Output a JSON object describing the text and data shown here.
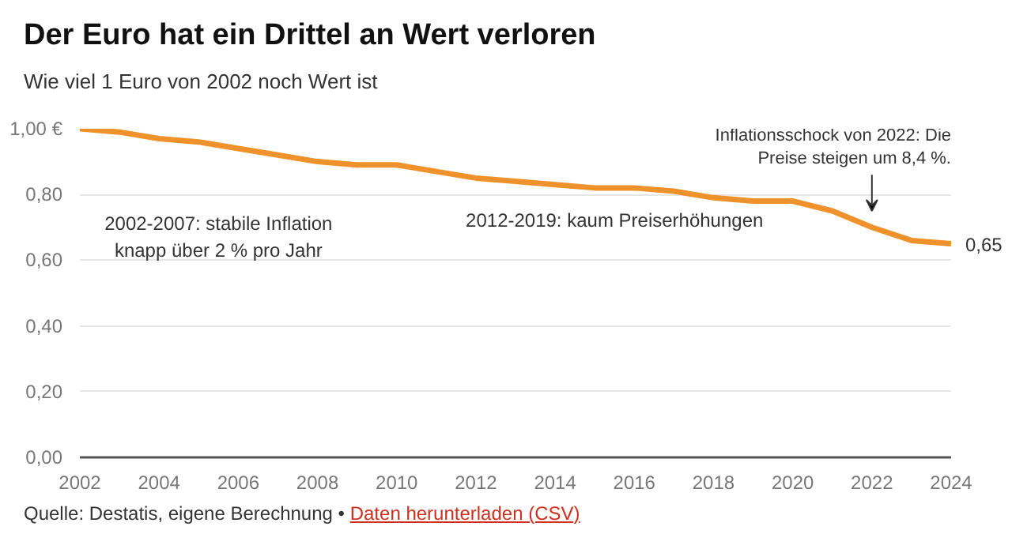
{
  "chart_data": {
    "type": "line",
    "title": "Der Euro hat ein Drittel an Wert verloren",
    "subtitle": "Wie viel 1 Euro von 2002 noch Wert ist",
    "x": [
      2002,
      2003,
      2004,
      2005,
      2006,
      2007,
      2008,
      2009,
      2010,
      2011,
      2012,
      2013,
      2014,
      2015,
      2016,
      2017,
      2018,
      2019,
      2020,
      2021,
      2022,
      2023,
      2024
    ],
    "series": [
      {
        "color": "#f0922b",
        "values": [
          1.0,
          0.99,
          0.97,
          0.96,
          0.94,
          0.92,
          0.9,
          0.89,
          0.89,
          0.87,
          0.85,
          0.84,
          0.83,
          0.82,
          0.82,
          0.81,
          0.79,
          0.78,
          0.78,
          0.75,
          0.7,
          0.66,
          0.65
        ],
        "value_labels": [
          null,
          null,
          null,
          null,
          null,
          null,
          null,
          null,
          null,
          null,
          null,
          null,
          null,
          null,
          null,
          null,
          null,
          null,
          null,
          null,
          null,
          null,
          "0,65"
        ]
      }
    ],
    "xlim": [
      2002,
      2024
    ],
    "xticks": [
      2002,
      2004,
      2006,
      2008,
      2010,
      2012,
      2014,
      2016,
      2018,
      2020,
      2022,
      2024
    ],
    "ylim": [
      0,
      1
    ],
    "yticks": [
      {
        "value": 0,
        "label": "0,00"
      },
      {
        "value": 0.2,
        "label": "0,20"
      },
      {
        "value": 0.4,
        "label": "0,40"
      },
      {
        "value": 0.6,
        "label": "0,60"
      },
      {
        "value": 0.8,
        "label": "0,80"
      },
      {
        "value": 1,
        "label": "1,00 €"
      }
    ],
    "grid": "y",
    "marker": "none",
    "line_style": "solid",
    "annotations": [
      "2002-2007: stabile Inflation\nknapp über 2 % pro Jahr",
      "2012-2019: kaum Preiserhöhungen",
      "Inflationsschock von 2022: Die\nPreise steigen um 8,4 %.",
      "Quelle: Destatis, eigene Berechnung •",
      "Daten herunterladen (CSV)"
    ]
  }
}
